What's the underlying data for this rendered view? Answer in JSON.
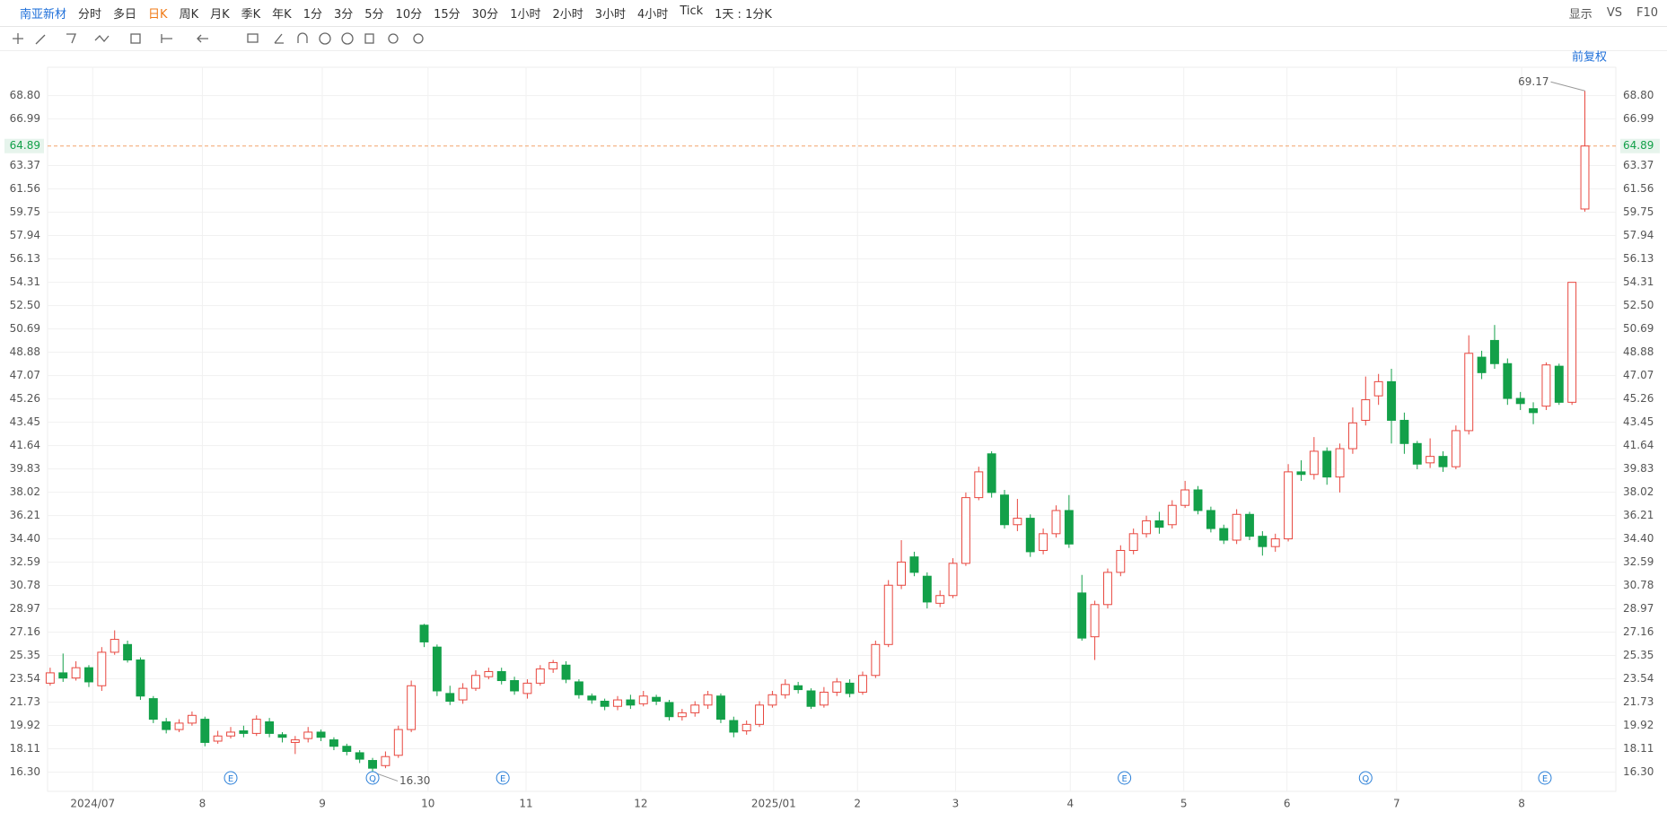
{
  "toolbar": {
    "stock": "南亚新材",
    "periods": [
      "分时",
      "多日",
      "日K",
      "周K",
      "月K",
      "季K",
      "年K",
      "1分",
      "3分",
      "5分",
      "10分",
      "15分",
      "30分",
      "1小时",
      "2小时",
      "3小时",
      "4小时",
      "Tick",
      "1天 : 1分K"
    ],
    "active_period": 2,
    "right": [
      "显示",
      "VS",
      "F10"
    ],
    "adjust": "前复权"
  },
  "chart_data": {
    "type": "candlestick",
    "candles": [
      [
        23.2,
        24.4,
        23.0,
        24.0
      ],
      [
        24.0,
        25.5,
        23.3,
        23.6
      ],
      [
        23.6,
        24.9,
        23.4,
        24.4
      ],
      [
        24.4,
        24.6,
        22.9,
        23.3
      ],
      [
        23.0,
        26.0,
        22.6,
        25.6
      ],
      [
        25.6,
        27.3,
        25.4,
        26.6
      ],
      [
        26.2,
        26.5,
        24.8,
        25.0
      ],
      [
        25.0,
        25.2,
        21.9,
        22.2
      ],
      [
        22.0,
        22.2,
        20.1,
        20.4
      ],
      [
        20.2,
        20.5,
        19.3,
        19.6
      ],
      [
        19.6,
        20.4,
        19.4,
        20.1
      ],
      [
        20.1,
        21.0,
        19.9,
        20.7
      ],
      [
        20.4,
        20.6,
        18.3,
        18.6
      ],
      [
        18.7,
        19.5,
        18.5,
        19.1
      ],
      [
        19.1,
        19.8,
        18.9,
        19.4
      ],
      [
        19.5,
        19.9,
        19.0,
        19.3
      ],
      [
        19.3,
        20.7,
        19.1,
        20.4
      ],
      [
        20.2,
        20.5,
        19.0,
        19.3
      ],
      [
        19.2,
        19.4,
        18.6,
        19.0
      ],
      [
        18.6,
        19.1,
        17.7,
        18.8
      ],
      [
        18.9,
        19.8,
        18.6,
        19.4
      ],
      [
        19.4,
        19.6,
        18.7,
        19.0
      ],
      [
        18.8,
        19.0,
        18.0,
        18.3
      ],
      [
        18.3,
        18.5,
        17.6,
        17.9
      ],
      [
        17.8,
        18.0,
        17.0,
        17.3
      ],
      [
        17.2,
        17.4,
        16.3,
        16.6
      ],
      [
        16.8,
        17.9,
        16.6,
        17.5
      ],
      [
        17.6,
        19.9,
        17.4,
        19.6
      ],
      [
        19.6,
        23.4,
        19.4,
        23.0
      ],
      [
        27.7,
        27.8,
        26.0,
        26.4
      ],
      [
        26.0,
        26.2,
        22.2,
        22.6
      ],
      [
        22.4,
        23.0,
        21.5,
        21.8
      ],
      [
        21.9,
        23.2,
        21.6,
        22.8
      ],
      [
        22.8,
        24.2,
        22.6,
        23.8
      ],
      [
        23.7,
        24.4,
        23.5,
        24.1
      ],
      [
        24.1,
        24.4,
        23.1,
        23.4
      ],
      [
        23.4,
        23.7,
        22.3,
        22.6
      ],
      [
        22.4,
        23.5,
        22.0,
        23.2
      ],
      [
        23.2,
        24.6,
        23.0,
        24.3
      ],
      [
        24.3,
        25.0,
        24.0,
        24.8
      ],
      [
        24.6,
        24.9,
        23.2,
        23.5
      ],
      [
        23.3,
        23.5,
        22.0,
        22.3
      ],
      [
        22.2,
        22.4,
        21.6,
        21.9
      ],
      [
        21.8,
        22.0,
        21.1,
        21.4
      ],
      [
        21.4,
        22.2,
        21.1,
        21.9
      ],
      [
        21.9,
        22.3,
        21.2,
        21.5
      ],
      [
        21.6,
        22.6,
        21.4,
        22.2
      ],
      [
        22.1,
        22.3,
        21.5,
        21.8
      ],
      [
        21.7,
        21.9,
        20.3,
        20.6
      ],
      [
        20.6,
        21.2,
        20.3,
        20.9
      ],
      [
        20.9,
        21.8,
        20.6,
        21.5
      ],
      [
        21.5,
        22.6,
        21.2,
        22.3
      ],
      [
        22.2,
        22.4,
        20.1,
        20.4
      ],
      [
        20.3,
        20.6,
        19.0,
        19.4
      ],
      [
        19.5,
        20.3,
        19.2,
        20.0
      ],
      [
        20.0,
        21.8,
        19.8,
        21.5
      ],
      [
        21.5,
        22.6,
        21.3,
        22.3
      ],
      [
        22.3,
        23.5,
        22.0,
        23.1
      ],
      [
        23.0,
        23.3,
        22.4,
        22.7
      ],
      [
        22.6,
        22.8,
        21.2,
        21.4
      ],
      [
        21.5,
        22.9,
        21.3,
        22.5
      ],
      [
        22.5,
        23.6,
        22.2,
        23.3
      ],
      [
        23.2,
        23.5,
        22.1,
        22.4
      ],
      [
        22.5,
        24.1,
        22.3,
        23.8
      ],
      [
        23.8,
        26.5,
        23.6,
        26.2
      ],
      [
        26.2,
        31.2,
        26.0,
        30.8
      ],
      [
        30.8,
        34.3,
        30.5,
        32.6
      ],
      [
        33.0,
        33.4,
        31.5,
        31.8
      ],
      [
        31.5,
        31.8,
        29.0,
        29.5
      ],
      [
        29.4,
        30.4,
        29.1,
        30.0
      ],
      [
        30.0,
        32.9,
        29.8,
        32.5
      ],
      [
        32.5,
        38.0,
        32.3,
        37.6
      ],
      [
        37.6,
        40.0,
        37.4,
        39.6
      ],
      [
        41.0,
        41.2,
        37.6,
        38.0
      ],
      [
        37.8,
        38.2,
        35.2,
        35.5
      ],
      [
        35.5,
        37.5,
        35.0,
        36.0
      ],
      [
        36.0,
        36.3,
        33.0,
        33.4
      ],
      [
        33.5,
        35.2,
        33.2,
        34.8
      ],
      [
        34.8,
        37.0,
        34.5,
        36.6
      ],
      [
        36.6,
        37.8,
        33.7,
        34.0
      ],
      [
        30.2,
        31.6,
        26.5,
        26.7
      ],
      [
        26.8,
        29.6,
        25.0,
        29.3
      ],
      [
        29.3,
        32.1,
        29.0,
        31.8
      ],
      [
        31.8,
        33.9,
        31.5,
        33.5
      ],
      [
        33.5,
        35.2,
        33.2,
        34.8
      ],
      [
        34.8,
        36.2,
        34.5,
        35.8
      ],
      [
        35.8,
        36.5,
        34.8,
        35.3
      ],
      [
        35.5,
        37.4,
        35.2,
        37.0
      ],
      [
        37.0,
        38.9,
        36.8,
        38.2
      ],
      [
        38.2,
        38.5,
        36.3,
        36.6
      ],
      [
        36.6,
        36.9,
        34.9,
        35.2
      ],
      [
        35.2,
        35.5,
        34.0,
        34.3
      ],
      [
        34.3,
        36.7,
        34.0,
        36.3
      ],
      [
        36.3,
        36.5,
        34.3,
        34.6
      ],
      [
        34.6,
        35.0,
        33.1,
        33.8
      ],
      [
        33.8,
        34.8,
        33.4,
        34.4
      ],
      [
        34.4,
        40.2,
        34.2,
        39.6
      ],
      [
        39.6,
        40.5,
        38.9,
        39.4
      ],
      [
        39.4,
        42.3,
        39.0,
        41.2
      ],
      [
        41.2,
        41.5,
        38.6,
        39.2
      ],
      [
        39.2,
        41.8,
        38.0,
        41.4
      ],
      [
        41.4,
        44.6,
        41.0,
        43.4
      ],
      [
        43.6,
        47.0,
        43.2,
        45.2
      ],
      [
        45.5,
        47.2,
        44.8,
        46.6
      ],
      [
        46.6,
        47.6,
        41.8,
        43.6
      ],
      [
        43.6,
        44.2,
        41.0,
        41.8
      ],
      [
        41.8,
        42.0,
        39.8,
        40.2
      ],
      [
        40.3,
        42.2,
        39.9,
        40.8
      ],
      [
        40.8,
        41.2,
        39.6,
        40.0
      ],
      [
        40.0,
        43.2,
        39.8,
        42.8
      ],
      [
        42.8,
        50.2,
        42.5,
        48.8
      ],
      [
        48.5,
        49.0,
        46.8,
        47.3
      ],
      [
        49.8,
        51.0,
        47.6,
        48.0
      ],
      [
        48.0,
        48.4,
        44.8,
        45.3
      ],
      [
        45.3,
        45.8,
        44.4,
        44.9
      ],
      [
        44.5,
        45.0,
        43.3,
        44.2
      ],
      [
        44.7,
        48.1,
        44.4,
        47.9
      ],
      [
        47.8,
        48.0,
        44.8,
        45.0
      ],
      [
        45.0,
        54.31,
        44.8,
        54.31
      ],
      [
        60.0,
        69.17,
        59.8,
        64.89
      ]
    ],
    "xlim": [
      -0.2,
      121.4
    ],
    "xticks": [
      {
        "value": 3.3,
        "label": "2024/07"
      },
      {
        "value": 11.8,
        "label": "8"
      },
      {
        "value": 21.1,
        "label": "9"
      },
      {
        "value": 29.3,
        "label": "10"
      },
      {
        "value": 36.9,
        "label": "11"
      },
      {
        "value": 45.8,
        "label": "12"
      },
      {
        "value": 56.1,
        "label": "2025/01"
      },
      {
        "value": 62.6,
        "label": "2"
      },
      {
        "value": 70.2,
        "label": "3"
      },
      {
        "value": 79.1,
        "label": "4"
      },
      {
        "value": 87.9,
        "label": "5"
      },
      {
        "value": 95.9,
        "label": "6"
      },
      {
        "value": 104.4,
        "label": "7"
      },
      {
        "value": 114.1,
        "label": "8"
      }
    ],
    "ylim": [
      14.8,
      71.0
    ],
    "yticks": [
      {
        "value": 16.3,
        "label": "16.30"
      },
      18.11,
      19.92,
      21.73,
      23.54,
      25.35,
      27.16,
      28.97,
      30.78,
      32.59,
      {
        "value": 34.4,
        "label": "34.40"
      },
      36.21,
      38.02,
      39.83,
      41.64,
      43.45,
      45.26,
      47.07,
      48.88,
      50.69,
      {
        "value": 52.5,
        "label": "52.50"
      },
      54.31,
      56.13,
      57.94,
      59.75,
      61.56,
      63.37,
      66.99,
      {
        "value": 68.8,
        "label": "68.80"
      }
    ],
    "last_price": 64.89,
    "up_color": "#e8473f",
    "down_color": "#13a049",
    "price_line_color": "#f2a46a",
    "annotations": [
      {
        "x": 119,
        "value": 69.17
      },
      {
        "x": 25,
        "value": 16.3,
        "label": "16.30"
      }
    ],
    "events": [
      {
        "x": 14.0,
        "label": "E"
      },
      {
        "x": 25.0,
        "label": "Q"
      },
      {
        "x": 35.1,
        "label": "E"
      },
      {
        "x": 83.3,
        "label": "E"
      },
      {
        "x": 102.0,
        "label": "Q"
      },
      {
        "x": 115.9,
        "label": "E"
      }
    ],
    "grid": true
  }
}
